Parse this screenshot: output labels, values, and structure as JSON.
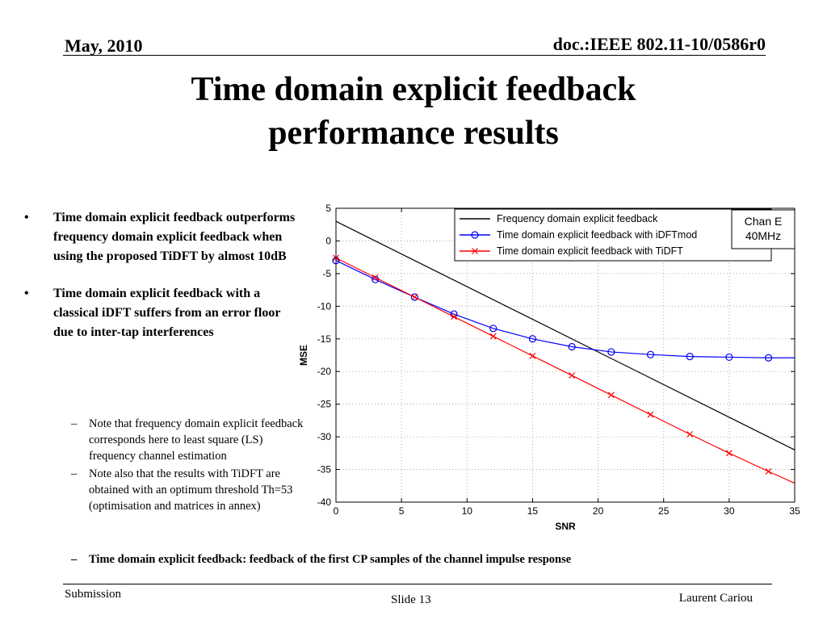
{
  "header": {
    "date": "May, 2010",
    "doc": "doc.:IEEE 802.11-10/0586r0"
  },
  "title": {
    "line1": "Time domain explicit feedback",
    "line2": "performance results"
  },
  "bullets": [
    {
      "marker": "•",
      "text": "Time domain explicit feedback outperforms frequency domain explicit feedback when using the proposed TiDFT by almost 10dB"
    },
    {
      "marker": "•",
      "text": "Time domain explicit feedback with a classical iDFT suffers from an error floor due to inter-tap interferences"
    }
  ],
  "sub_bullets": [
    {
      "marker": "–",
      "text": "Note that frequency domain explicit feedback corresponds here to least square (LS) frequency channel estimation"
    },
    {
      "marker": "–",
      "text": "Note also that the results with TiDFT are obtained with an optimum threshold Th=53 (optimisation and matrices in annex)"
    }
  ],
  "last_line": {
    "marker": "–",
    "text": "Time domain explicit feedback: feedback of the first CP samples of the channel impulse response"
  },
  "footer": {
    "left": "Submission",
    "center": "Slide 13",
    "right": "Laurent Cariou"
  },
  "chart_data": {
    "type": "line",
    "xlabel": "SNR",
    "ylabel": "MSE",
    "xlim": [
      0,
      35
    ],
    "ylim": [
      -40,
      5
    ],
    "xticks": [
      0,
      5,
      10,
      15,
      20,
      25,
      30,
      35
    ],
    "yticks": [
      5,
      0,
      -5,
      -10,
      -15,
      -20,
      -25,
      -30,
      -35,
      -40
    ],
    "grid": true,
    "legend_position": "top-right",
    "annotation": [
      "Chan E",
      "40MHz"
    ],
    "series": [
      {
        "name": "Frequency domain explicit feedback",
        "color": "#000000",
        "marker": "none",
        "x": [
          0,
          35
        ],
        "y": [
          3.0,
          -32.0
        ]
      },
      {
        "name": "Time domain explicit feedback with iDFTmod",
        "color": "#0000ff",
        "marker": "circle",
        "x": [
          0,
          3,
          6,
          9,
          12,
          15,
          18,
          21,
          24,
          27,
          30,
          33,
          35
        ],
        "y": [
          -3.0,
          -5.9,
          -8.6,
          -11.2,
          -13.4,
          -15.0,
          -16.2,
          -17.0,
          -17.4,
          -17.7,
          -17.8,
          -17.9,
          -17.9
        ]
      },
      {
        "name": "Time domain explicit feedback with TiDFT",
        "color": "#ff0000",
        "marker": "x",
        "x": [
          0,
          3,
          6,
          9,
          12,
          15,
          18,
          21,
          24,
          27,
          30,
          33,
          35
        ],
        "y": [
          -2.6,
          -5.6,
          -8.6,
          -11.6,
          -14.6,
          -17.6,
          -20.6,
          -23.6,
          -26.6,
          -29.6,
          -32.5,
          -35.3,
          -37.1
        ]
      }
    ]
  }
}
